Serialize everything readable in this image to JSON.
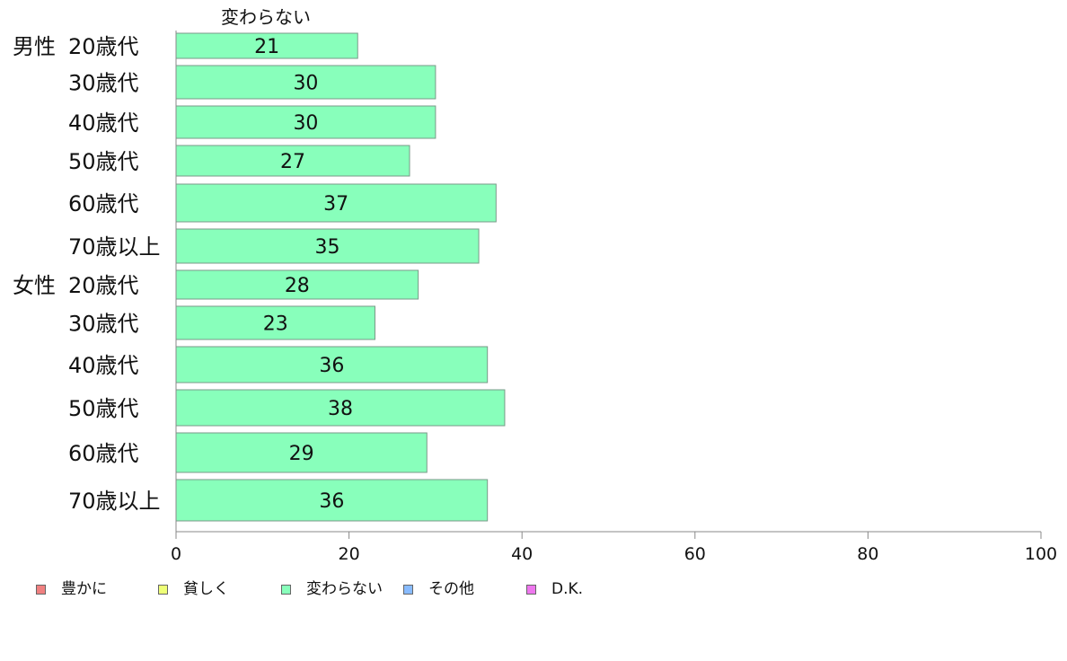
{
  "chart_data": {
    "type": "bar",
    "orientation": "horizontal",
    "series_title": "変わらない",
    "groups": [
      {
        "label": "男性",
        "categories": [
          "20歳代",
          "30歳代",
          "40歳代",
          "50歳代",
          "60歳代",
          "70歳以上"
        ],
        "values": [
          21,
          30,
          30,
          27,
          37,
          35
        ]
      },
      {
        "label": "女性",
        "categories": [
          "20歳代",
          "30歳代",
          "40歳代",
          "50歳代",
          "60歳代",
          "70歳以上"
        ],
        "values": [
          28,
          23,
          36,
          38,
          29,
          36
        ]
      }
    ],
    "xlim": [
      0,
      100
    ],
    "xticks": [
      0,
      20,
      40,
      60,
      80,
      100
    ],
    "bar_color": "#88ffbb",
    "grid": false,
    "legend_position": "bottom-left",
    "legend": [
      {
        "label": "豊かに",
        "color": "#f08080"
      },
      {
        "label": "貧しく",
        "color": "#eeff77"
      },
      {
        "label": "変わらない",
        "color": "#88ffbb"
      },
      {
        "label": "その他",
        "color": "#88bbff"
      },
      {
        "label": "D.K.",
        "color": "#ee77ee"
      }
    ]
  }
}
